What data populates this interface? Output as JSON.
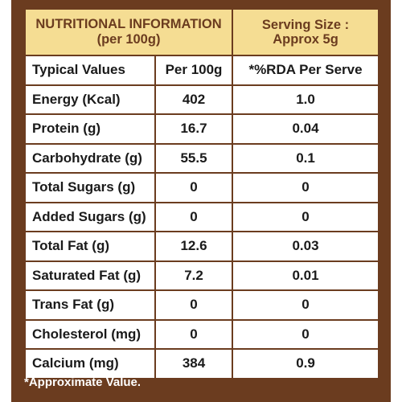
{
  "header": {
    "title_line1": "NUTRITIONAL INFORMATION",
    "title_line2": "(per 100g)",
    "serving_line1": "Serving Size :",
    "serving_line2": "Approx 5g"
  },
  "columns": [
    "Typical Values",
    "Per 100g",
    "*%RDA Per Serve"
  ],
  "rows": [
    {
      "label": "Energy (Kcal)",
      "per100g": "402",
      "rda": "1.0"
    },
    {
      "label": "Protein (g)",
      "per100g": "16.7",
      "rda": "0.04"
    },
    {
      "label": "Carbohydrate (g)",
      "per100g": "55.5",
      "rda": "0.1"
    },
    {
      "label": "Total Sugars (g)",
      "per100g": "0",
      "rda": "0"
    },
    {
      "label": "Added Sugars (g)",
      "per100g": "0",
      "rda": "0"
    },
    {
      "label": "Total Fat (g)",
      "per100g": "12.6",
      "rda": "0.03"
    },
    {
      "label": "Saturated Fat (g)",
      "per100g": "7.2",
      "rda": "0.01"
    },
    {
      "label": "Trans Fat (g)",
      "per100g": "0",
      "rda": "0"
    },
    {
      "label": "Cholesterol (mg)",
      "per100g": "0",
      "rda": "0"
    },
    {
      "label": "Calcium (mg)",
      "per100g": "384",
      "rda": "0.9"
    }
  ],
  "footnote": "*Approximate Value.",
  "colors": {
    "border": "#6b3c1f",
    "header_bg": "#f5dd93",
    "header_text": "#6b3c1f"
  }
}
